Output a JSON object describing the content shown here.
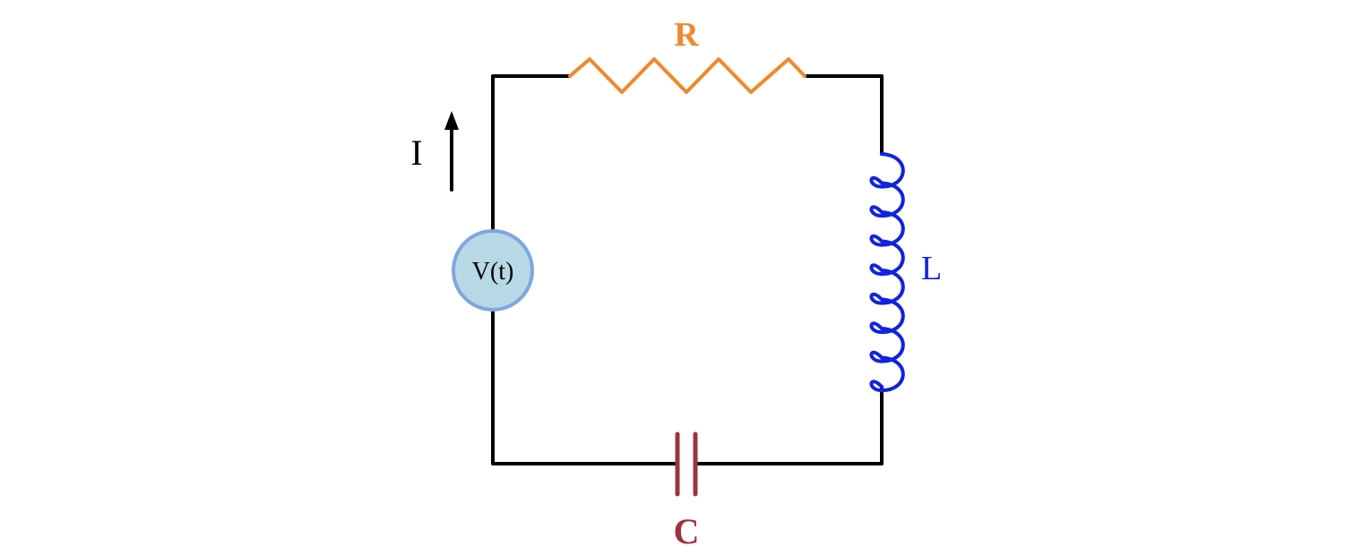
{
  "labels": {
    "resistor": "R",
    "inductor": "L",
    "capacitor": "C",
    "current": "I",
    "source": "V(t)"
  },
  "colors": {
    "wire": "#000000",
    "resistor": "#f0882e",
    "inductor": "#1122e0",
    "capacitor": "#9b3440",
    "source_fill": "#b8d8e6",
    "source_stroke": "#7ea6e0",
    "arrow": "#000000"
  },
  "icons": {
    "current_arrow": "up-arrow-icon"
  }
}
